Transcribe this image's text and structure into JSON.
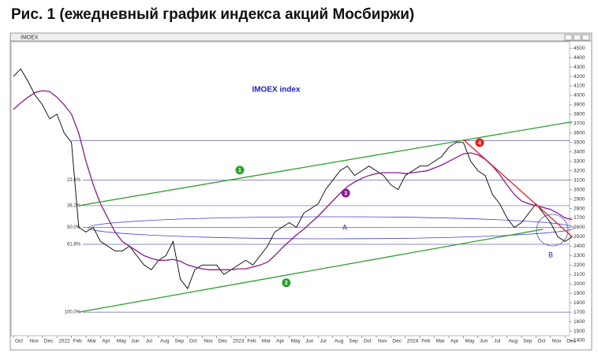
{
  "chart_data": {
    "type": "line",
    "title": "Рис. 1 (ежедневный график индекса акций Мосбиржи)",
    "window_title": "IMOEX",
    "annotation": "IMOEX index",
    "categories": [
      "Oct",
      null,
      "Nov",
      null,
      "Dec",
      null,
      "2022",
      null,
      "Feb",
      null,
      "Mar",
      null,
      "Apr",
      null,
      "May",
      null,
      "Jun",
      null,
      "Jul",
      null,
      "Aug",
      null,
      "Sep",
      null,
      "Oct",
      null,
      "Nov",
      null,
      "Dec",
      null,
      "2023",
      null,
      "Feb",
      null,
      "Mar",
      null,
      "Apr",
      null,
      "May",
      null,
      "Jun",
      null,
      "Jul",
      null,
      "Aug",
      null,
      "Sep",
      null,
      "Oct",
      null,
      "Nov",
      null,
      "Dec",
      null,
      "2024",
      null,
      "Feb",
      null,
      "Mar",
      null,
      "Apr",
      null,
      "May",
      null,
      "Jun",
      null,
      "Jul",
      null,
      "Aug",
      null,
      "Sep",
      null,
      "Oct",
      null,
      "Nov",
      null,
      "Dec",
      null
    ],
    "series": [
      {
        "color": "#000000",
        "values": [
          4200,
          4280,
          4150,
          4000,
          3900,
          3750,
          3800,
          3600,
          3500,
          2600,
          2550,
          2600,
          2450,
          2400,
          2350,
          2350,
          2400,
          2300,
          2200,
          2150,
          2250,
          2300,
          2450,
          2050,
          1950,
          2150,
          2200,
          2200,
          2200,
          2100,
          2150,
          2200,
          2250,
          2200,
          2300,
          2400,
          2550,
          2600,
          2650,
          2600,
          2750,
          2800,
          2850,
          3000,
          3100,
          3200,
          3250,
          3150,
          3200,
          3250,
          3200,
          3150,
          3050,
          3000,
          3150,
          3200,
          3250,
          3250,
          3300,
          3350,
          3450,
          3500,
          3500,
          3300,
          3200,
          3150,
          2950,
          2850,
          2700,
          2600,
          2650,
          2750,
          2850,
          2750,
          2650,
          2500,
          2450,
          2500
        ]
      },
      {
        "color": "#8b1a8b",
        "marker": "3",
        "values": [
          3850,
          3920,
          3980,
          4030,
          4050,
          4040,
          3980,
          3900,
          3800,
          3600,
          3300,
          3050,
          2850,
          2700,
          2550,
          2450,
          2400,
          2350,
          2300,
          2270,
          2250,
          2250,
          2260,
          2240,
          2200,
          2180,
          2160,
          2150,
          2150,
          2150,
          2150,
          2160,
          2160,
          2180,
          2200,
          2230,
          2300,
          2380,
          2450,
          2520,
          2580,
          2650,
          2720,
          2800,
          2880,
          2960,
          3030,
          3080,
          3120,
          3150,
          3170,
          3180,
          3180,
          3180,
          3170,
          3180,
          3190,
          3200,
          3230,
          3260,
          3300,
          3340,
          3380,
          3390,
          3370,
          3320,
          3250,
          3160,
          3050,
          2950,
          2880,
          2850,
          2830,
          2810,
          2790,
          2750,
          2700,
          2680
        ]
      }
    ],
    "trend_lines": [
      {
        "marker": "1",
        "color": "#2e9e2e",
        "from": {
          "i": 9,
          "v": 2830
        },
        "to": {
          "i": 77,
          "v": 3720
        }
      },
      {
        "marker": "2",
        "color": "#2e9e2e",
        "from": {
          "i": 9,
          "v": 1700
        },
        "to": {
          "i": 73,
          "v": 2580
        }
      },
      {
        "marker": "4",
        "color": "#e02020",
        "from": {
          "i": 62,
          "v": 3530
        },
        "to": {
          "i": 77,
          "v": 2500
        }
      }
    ],
    "levels": [
      {
        "value": 3100,
        "label": "23.6%"
      },
      {
        "value": 2830,
        "label": "38.2%"
      },
      {
        "value": 2600,
        "label": "50.0%"
      },
      {
        "value": 2420,
        "label": "61.8%"
      },
      {
        "value": 1700,
        "label": "100.0%"
      }
    ],
    "top_level": 3520,
    "zones": [
      "A",
      "B"
    ],
    "ylim": [
      1350,
      4560
    ],
    "yticks": [
      1400,
      1500,
      1600,
      1700,
      1800,
      1900,
      2000,
      2100,
      2200,
      2300,
      2400,
      2500,
      2600,
      2700,
      2800,
      2900,
      3000,
      3100,
      3200,
      3300,
      3400,
      3500,
      3600,
      3700,
      3800,
      3900,
      4000,
      4100,
      4200,
      4300,
      4400,
      4500
    ]
  }
}
